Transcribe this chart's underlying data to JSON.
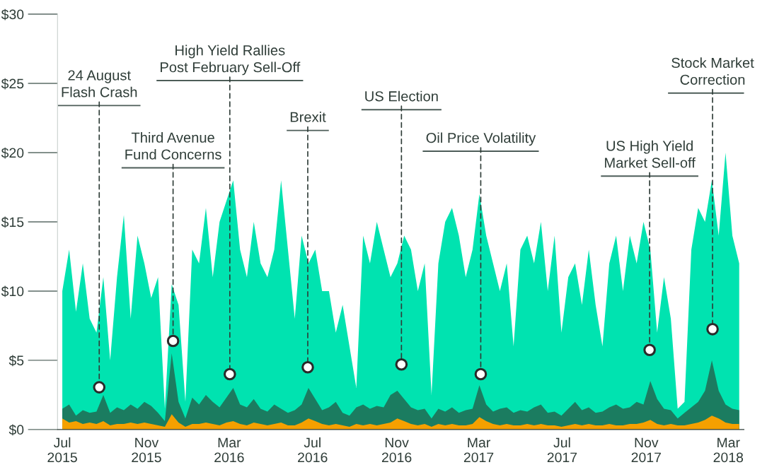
{
  "chart_data": {
    "type": "area",
    "x": [
      "2015-07-01",
      "2015-07-11",
      "2015-07-21",
      "2015-07-31",
      "2015-08-10",
      "2015-08-20",
      "2015-08-30",
      "2015-09-09",
      "2015-09-19",
      "2015-09-29",
      "2015-10-09",
      "2015-10-19",
      "2015-10-29",
      "2015-11-08",
      "2015-11-18",
      "2015-11-28",
      "2015-12-08",
      "2015-12-18",
      "2015-12-28",
      "2016-01-07",
      "2016-01-17",
      "2016-01-27",
      "2016-02-06",
      "2016-02-16",
      "2016-02-26",
      "2016-03-07",
      "2016-03-17",
      "2016-03-27",
      "2016-04-06",
      "2016-04-16",
      "2016-04-26",
      "2016-05-06",
      "2016-05-16",
      "2016-05-26",
      "2016-06-05",
      "2016-06-15",
      "2016-06-25",
      "2016-07-05",
      "2016-07-15",
      "2016-07-25",
      "2016-08-04",
      "2016-08-14",
      "2016-08-24",
      "2016-09-03",
      "2016-09-13",
      "2016-09-23",
      "2016-10-03",
      "2016-10-13",
      "2016-10-23",
      "2016-11-02",
      "2016-11-12",
      "2016-11-22",
      "2016-12-02",
      "2016-12-12",
      "2016-12-22",
      "2017-01-01",
      "2017-01-11",
      "2017-01-21",
      "2017-01-31",
      "2017-02-10",
      "2017-02-20",
      "2017-03-02",
      "2017-03-12",
      "2017-03-22",
      "2017-04-01",
      "2017-04-11",
      "2017-04-21",
      "2017-05-01",
      "2017-05-11",
      "2017-05-21",
      "2017-05-31",
      "2017-06-10",
      "2017-06-20",
      "2017-06-30",
      "2017-07-10",
      "2017-07-20",
      "2017-07-30",
      "2017-08-09",
      "2017-08-19",
      "2017-08-29",
      "2017-09-08",
      "2017-09-18",
      "2017-09-28",
      "2017-10-08",
      "2017-10-18",
      "2017-10-28",
      "2017-11-07",
      "2017-11-17",
      "2017-11-27",
      "2017-12-07",
      "2017-12-17",
      "2017-12-27",
      "2018-01-06",
      "2018-01-16",
      "2018-01-26",
      "2018-02-05",
      "2018-02-15",
      "2018-02-25",
      "2018-03-07",
      "2018-03-17"
    ],
    "series": [
      {
        "color": "#00e3b0",
        "values": [
          10,
          13,
          8.5,
          12,
          8,
          7,
          11,
          5,
          11,
          15.5,
          8,
          14,
          12,
          9.5,
          11,
          1.5,
          10.5,
          9,
          2,
          13,
          12,
          16,
          11,
          15,
          16.5,
          18,
          13,
          11,
          15,
          12,
          11,
          13,
          18,
          13,
          8,
          14,
          12,
          13,
          10,
          10,
          7,
          9,
          6,
          3,
          14,
          12,
          15,
          13,
          11,
          12,
          14,
          13,
          10,
          12,
          2.5,
          12,
          15,
          16,
          14,
          11,
          13,
          17,
          14,
          12,
          10,
          12,
          6,
          13,
          14,
          12,
          15,
          10,
          14,
          7,
          11,
          12,
          9,
          13,
          9,
          6,
          12,
          14,
          10,
          14,
          12,
          15,
          13,
          7,
          11,
          8,
          1.5,
          2,
          13,
          16,
          15,
          18,
          14,
          20,
          14,
          12
        ]
      },
      {
        "color": "#1b7c60",
        "values": [
          1.5,
          1.8,
          1.0,
          1.4,
          1.2,
          1.3,
          2.5,
          1.2,
          1.6,
          1.4,
          1.8,
          1.5,
          2.0,
          1.7,
          1.2,
          0.6,
          5.5,
          2.0,
          0.8,
          2.3,
          1.8,
          2.5,
          2.0,
          1.6,
          2.3,
          3.0,
          1.8,
          1.6,
          2.2,
          1.5,
          1.3,
          1.8,
          1.5,
          1.2,
          1.4,
          1.8,
          3.0,
          2.2,
          1.4,
          1.6,
          2.0,
          1.2,
          1.0,
          1.6,
          1.8,
          1.5,
          1.7,
          1.6,
          2.5,
          2.8,
          2.2,
          1.6,
          1.4,
          1.5,
          0.8,
          1.5,
          1.3,
          1.6,
          1.2,
          1.4,
          1.5,
          3.2,
          1.8,
          1.3,
          1.5,
          1.6,
          1.2,
          1.4,
          1.3,
          1.6,
          1.8,
          1.2,
          1.3,
          1.0,
          1.5,
          2.0,
          1.4,
          1.6,
          1.2,
          1.3,
          1.6,
          1.8,
          1.5,
          1.6,
          2.0,
          1.8,
          3.5,
          2.2,
          1.5,
          1.4,
          0.8,
          1.2,
          1.6,
          2.0,
          2.8,
          5.0,
          2.8,
          1.8,
          1.5,
          1.4
        ]
      },
      {
        "color": "#f5a000",
        "values": [
          0.8,
          0.5,
          0.6,
          0.4,
          0.5,
          0.4,
          0.6,
          0.3,
          0.4,
          0.4,
          0.5,
          0.4,
          0.5,
          0.4,
          0.3,
          0.2,
          1.1,
          0.5,
          0.2,
          0.4,
          0.4,
          0.5,
          0.4,
          0.3,
          0.5,
          0.6,
          0.4,
          0.3,
          0.5,
          0.4,
          0.3,
          0.4,
          0.5,
          0.3,
          0.3,
          0.5,
          0.8,
          0.6,
          0.4,
          0.3,
          0.4,
          0.3,
          0.2,
          0.4,
          0.3,
          0.4,
          0.3,
          0.4,
          0.5,
          0.8,
          0.6,
          0.4,
          0.3,
          0.4,
          0.2,
          0.4,
          0.3,
          0.4,
          0.3,
          0.3,
          0.4,
          0.9,
          0.6,
          0.4,
          0.3,
          0.4,
          0.3,
          0.3,
          0.4,
          0.3,
          0.4,
          0.3,
          0.3,
          0.2,
          0.3,
          0.4,
          0.3,
          0.4,
          0.3,
          0.3,
          0.4,
          0.3,
          0.3,
          0.4,
          0.4,
          0.5,
          0.7,
          0.4,
          0.3,
          0.4,
          0.3,
          0.3,
          0.4,
          0.5,
          0.7,
          1.0,
          0.8,
          0.5,
          0.4,
          0.4
        ]
      }
    ],
    "xlim": [
      "2015-06-24",
      "2018-03-24"
    ],
    "xticks": [
      {
        "value": "2015-07-01",
        "label": "Jul\n2015"
      },
      {
        "value": "2015-11-01",
        "label": "Nov\n2015"
      },
      {
        "value": "2016-03-01",
        "label": "Mar\n2016"
      },
      {
        "value": "2016-07-01",
        "label": "Jul\n2016"
      },
      {
        "value": "2016-11-01",
        "label": "Nov\n2016"
      },
      {
        "value": "2017-03-01",
        "label": "Mar\n2017"
      },
      {
        "value": "2017-07-01",
        "label": "Jul\n2017"
      },
      {
        "value": "2017-11-01",
        "label": "Nov\n2017"
      },
      {
        "value": "2018-03-01",
        "label": "Mar\n2018"
      }
    ],
    "ylim": [
      0,
      30
    ],
    "yticks": [
      {
        "value": 0,
        "label": "$0"
      },
      {
        "value": 5,
        "label": "$5"
      },
      {
        "value": 10,
        "label": "$10"
      },
      {
        "value": 15,
        "label": "$15"
      },
      {
        "value": 20,
        "label": "$20"
      },
      {
        "value": 25,
        "label": "$25"
      },
      {
        "value": 30,
        "label": "$30"
      }
    ],
    "grid": false,
    "legend": false,
    "annotations": [
      {
        "text": "24 August\nFlash Crash",
        "x": "2015-08-24",
        "y": 3.05
      },
      {
        "text": "Third Avenue\nFund Concerns",
        "x": "2015-12-10",
        "y": 6.4
      },
      {
        "text": "High Yield Rallies\nPost February Sell-Off",
        "x": "2016-03-02",
        "y": 4.0
      },
      {
        "text": "Brexit",
        "x": "2016-06-24",
        "y": 4.5
      },
      {
        "text": "US Election",
        "x": "2016-11-08",
        "y": 4.7
      },
      {
        "text": "Oil Price Volatility",
        "x": "2017-03-04",
        "y": 4.0
      },
      {
        "text": "US High Yield\nMarket Sell-off",
        "x": "2017-11-06",
        "y": 5.75
      },
      {
        "text": "Stock Market\nCorrection",
        "x": "2018-02-06",
        "y": 7.25
      }
    ]
  }
}
